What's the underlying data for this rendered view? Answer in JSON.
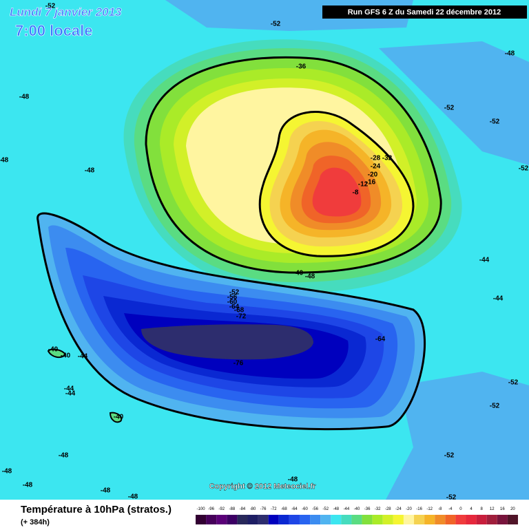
{
  "header": {
    "date": "Lundi 7 janvier 2013",
    "time": "7:00 locale",
    "run": "Run GFS 6 Z du Samedi 22 décembre 2012"
  },
  "map": {
    "contour_labels": [
      -52,
      -52,
      -48,
      -36,
      -52,
      -52,
      -48,
      -48,
      -48,
      -52,
      -28,
      -32,
      -24,
      -20,
      -16,
      -12,
      -8,
      -44,
      -44,
      -40,
      -48,
      -52,
      -56,
      -60,
      -64,
      -68,
      -72,
      -64,
      -76,
      -40,
      -40,
      -44,
      -44,
      -44,
      -40,
      -52,
      -52,
      -48,
      -52,
      -48,
      -48,
      -48,
      -48,
      -48,
      -52
    ],
    "copyright": "Copyright © 2012 Meteociel.fr"
  },
  "legend": {
    "title": "Température à 10hPa (stratos.)",
    "forecast": "(+ 384h)",
    "ticks": [
      -100,
      -96,
      -92,
      -88,
      -84,
      -80,
      -76,
      -72,
      -68,
      -64,
      -60,
      -56,
      -52,
      -48,
      -44,
      -40,
      -36,
      -32,
      -28,
      -24,
      -20,
      -16,
      -12,
      -8,
      -4,
      0,
      4,
      8,
      12,
      16,
      20
    ],
    "colors": [
      "#320032",
      "#46005a",
      "#5a0078",
      "#3c0064",
      "#28285a",
      "#1e1e64",
      "#2d2d6e",
      "#0000be",
      "#0a28d2",
      "#1e46e6",
      "#2864f0",
      "#3c8cf0",
      "#50b4f0",
      "#3ce6f0",
      "#46dcbe",
      "#5adc82",
      "#82e03c",
      "#aaeb28",
      "#d2f028",
      "#f5f532",
      "#fff5a0",
      "#f5d250",
      "#f5b428",
      "#f08c28",
      "#f06428",
      "#f03c3c",
      "#e6283c",
      "#c81e3c",
      "#a01e3c",
      "#78143c",
      "#501428"
    ]
  }
}
